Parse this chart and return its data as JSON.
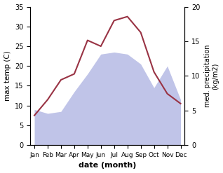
{
  "months": [
    "Jan",
    "Feb",
    "Mar",
    "Apr",
    "May",
    "Jun",
    "Jul",
    "Aug",
    "Sep",
    "Oct",
    "Nov",
    "Dec"
  ],
  "month_positions": [
    0,
    1,
    2,
    3,
    4,
    5,
    6,
    7,
    8,
    9,
    10,
    11
  ],
  "temperature": [
    7.5,
    11.5,
    16.5,
    18.0,
    26.5,
    25.0,
    31.5,
    32.5,
    28.5,
    18.5,
    13.0,
    10.5
  ],
  "precipitation": [
    9.0,
    8.0,
    8.5,
    13.5,
    18.0,
    23.0,
    23.5,
    23.0,
    20.5,
    14.5,
    20.0,
    11.5
  ],
  "temp_color": "#993344",
  "precip_fill_color": "#c0c4e8",
  "temp_ylim": [
    0,
    35
  ],
  "precip_ylim": [
    0,
    35
  ],
  "temp_yticks": [
    0,
    5,
    10,
    15,
    20,
    25,
    30,
    35
  ],
  "right_yticks": [
    0,
    5,
    10,
    15,
    20
  ],
  "right_ytick_positions": [
    0,
    4.9,
    9.8,
    14.7,
    19.6
  ],
  "xlabel": "date (month)",
  "ylabel_left": "max temp (C)",
  "ylabel_right": "med. precipitation\n(kg/m2)",
  "background_color": "#ffffff"
}
